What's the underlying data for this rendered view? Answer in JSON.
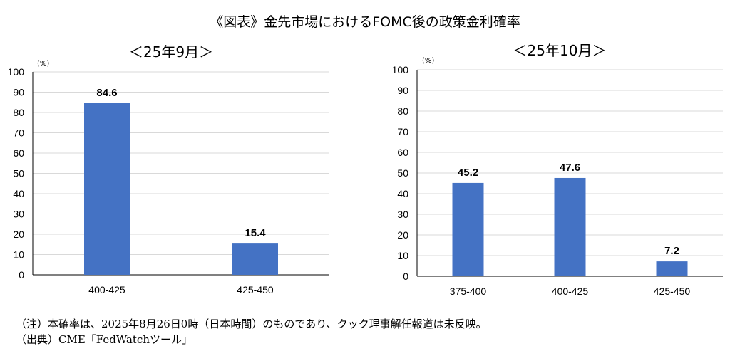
{
  "title": "《図表》金先市場におけるFOMC後の政策金利確率",
  "bar_color": "#4472C4",
  "grid_color": "#d9d9d9",
  "chart_data": [
    {
      "type": "bar",
      "title": "＜25年9月＞",
      "unit": "(%)",
      "categories": [
        "400-425",
        "425-450"
      ],
      "values": [
        84.6,
        15.4
      ],
      "value_labels": [
        "84.6",
        "15.4"
      ],
      "ylim": [
        0,
        100
      ],
      "yticks": [
        "0",
        "10",
        "20",
        "30",
        "40",
        "50",
        "60",
        "70",
        "80",
        "90",
        "100"
      ],
      "grid": true
    },
    {
      "type": "bar",
      "title": "＜25年10月＞",
      "unit": "(%)",
      "categories": [
        "375-400",
        "400-425",
        "425-450"
      ],
      "values": [
        45.2,
        47.6,
        7.2
      ],
      "value_labels": [
        "45.2",
        "47.6",
        "7.2"
      ],
      "ylim": [
        0,
        100
      ],
      "yticks": [
        "0",
        "10",
        "20",
        "30",
        "40",
        "50",
        "60",
        "70",
        "80",
        "90",
        "100"
      ],
      "grid": true
    }
  ],
  "notes": [
    "（注）本確率は、2025年8月26日0時（日本時間）のものであり、クック理事解任報道は未反映。",
    "（出典）CME「FedWatchツール」"
  ]
}
